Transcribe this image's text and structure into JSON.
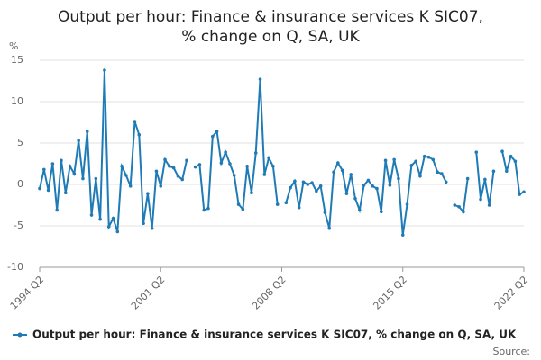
{
  "chart_data": {
    "type": "line",
    "title": "Output per hour: Finance & insurance services K SIC07, % change on Q, SA, UK",
    "y_label": "%",
    "source": "Source:",
    "categories": [
      "1994 Q2",
      null,
      null,
      null,
      null,
      null,
      null,
      null,
      null,
      null,
      null,
      null,
      null,
      null,
      null,
      null,
      null,
      null,
      null,
      null,
      null,
      null,
      null,
      null,
      null,
      null,
      null,
      null,
      "2001 Q2",
      null,
      null,
      null,
      null,
      null,
      null,
      null,
      null,
      null,
      null,
      null,
      null,
      null,
      null,
      null,
      null,
      null,
      null,
      null,
      null,
      null,
      null,
      null,
      null,
      null,
      null,
      null,
      "2008 Q2",
      null,
      null,
      null,
      null,
      null,
      null,
      null,
      null,
      null,
      null,
      null,
      null,
      null,
      null,
      null,
      null,
      null,
      null,
      null,
      null,
      null,
      null,
      null,
      null,
      null,
      null,
      null,
      "2015 Q2",
      null,
      null,
      null,
      null,
      null,
      null,
      null,
      null,
      null,
      null,
      null,
      null,
      null,
      null,
      null,
      null,
      null,
      null,
      null,
      null,
      null,
      null,
      null,
      null,
      null,
      null,
      null,
      "2022 Q2"
    ],
    "series": [
      {
        "name": "Output per hour: Finance & insurance services K SIC07, % change on Q, SA, UK",
        "color": "#1f7bb6",
        "values": [
          -0.5,
          1.8,
          -0.7,
          2.5,
          -3.1,
          2.9,
          -1.0,
          2.2,
          1.3,
          5.3,
          0.7,
          6.4,
          -3.7,
          0.7,
          -4.2,
          13.8,
          -5.1,
          -4.1,
          -5.7,
          2.2,
          1.1,
          -0.2,
          7.6,
          6.0,
          -4.7,
          -1.1,
          -5.3,
          1.6,
          -0.2,
          3.0,
          2.2,
          2.0,
          1.0,
          0.6,
          2.9,
          null,
          2.1,
          2.4,
          -3.1,
          -2.9,
          5.8,
          6.4,
          2.6,
          3.9,
          2.5,
          1.1,
          -2.4,
          -3.0,
          2.2,
          -1.0,
          3.8,
          12.7,
          1.2,
          3.2,
          2.2,
          -2.4,
          null,
          -2.2,
          -0.4,
          0.4,
          -2.8,
          0.3,
          0.0,
          0.2,
          -0.8,
          -0.2,
          -3.4,
          -5.3,
          1.5,
          2.6,
          1.7,
          -1.1,
          1.2,
          -1.7,
          -3.1,
          -0.1,
          0.5,
          -0.2,
          -0.5,
          -3.3,
          2.9,
          -0.1,
          3.0,
          0.7,
          -6.1,
          -2.4,
          2.3,
          2.8,
          1.0,
          3.4,
          3.3,
          3.0,
          1.5,
          1.3,
          0.3,
          null,
          -2.5,
          -2.7,
          -3.3,
          0.7,
          null,
          3.9,
          -1.8,
          0.6,
          -2.5,
          1.6,
          null,
          4.0,
          1.6,
          3.4,
          2.8,
          -1.2,
          -0.9
        ]
      }
    ],
    "ylim": [
      -10,
      15
    ],
    "yticks": [
      -10,
      -5,
      0,
      5,
      10,
      15
    ],
    "grid": true,
    "legend": "bottom-left"
  }
}
